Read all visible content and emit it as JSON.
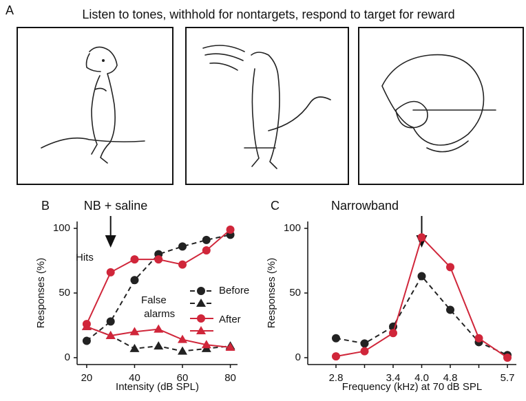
{
  "panel_a": {
    "label": "A",
    "caption": "Listen to tones, withhold for nontargets, respond to target for reward"
  },
  "chart_data": [
    {
      "type": "line",
      "panel_label": "B",
      "annotation": "NB + saline",
      "hits_label": "Hits",
      "false_alarms_label": "False alarms",
      "x_label": "Intensity (dB SPL)",
      "y_label": "Responses (%)",
      "x": [
        20,
        30,
        40,
        50,
        60,
        70,
        80
      ],
      "series": [
        {
          "name": "Before",
          "color": "#222222",
          "dashed": true,
          "hits": [
            13,
            28,
            60,
            80,
            86,
            91,
            95
          ],
          "false_alarms": [
            24,
            17,
            7,
            9,
            5,
            7,
            9
          ]
        },
        {
          "name": "After",
          "color": "#d0263a",
          "dashed": false,
          "hits": [
            26,
            66,
            76,
            76,
            72,
            83,
            99
          ],
          "false_alarms": [
            24,
            17,
            20,
            22,
            14,
            10,
            8
          ]
        }
      ],
      "xlim": [
        16,
        83
      ],
      "xticks": [
        20,
        40,
        60,
        80
      ],
      "ylim": [
        0,
        100
      ],
      "yticks": [
        0,
        50,
        100
      ]
    },
    {
      "type": "line",
      "panel_label": "C",
      "annotation": "Narrowband",
      "x_label": "Frequency (kHz) at 70 dB SPL",
      "y_label": "Responses (%)",
      "categories": [
        "2.8",
        null,
        "3.4",
        "4.0",
        "4.8",
        null,
        "5.7"
      ],
      "series": [
        {
          "name": "Before",
          "color": "#222222",
          "dashed": true,
          "values": [
            15,
            11,
            24,
            63,
            37,
            12,
            2
          ]
        },
        {
          "name": "After",
          "color": "#d0263a",
          "dashed": false,
          "values": [
            1,
            5,
            19,
            93,
            70,
            15,
            0
          ]
        }
      ],
      "ylim": [
        0,
        100
      ],
      "yticks": [
        0,
        50,
        100
      ]
    }
  ]
}
